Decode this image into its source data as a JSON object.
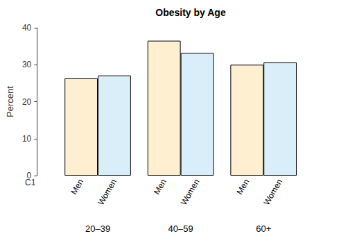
{
  "chart_data": {
    "type": "bar",
    "title": "Obesity by Age",
    "y_label": "Percent",
    "categories": [
      "20–39",
      "40–59",
      "60+"
    ],
    "series": [
      {
        "name": "Men",
        "color": "#fdefd0",
        "values": [
          26.3,
          36.5,
          30.0
        ]
      },
      {
        "name": "Women",
        "color": "#daeefa",
        "values": [
          27.1,
          33.2,
          30.6
        ]
      }
    ],
    "ylim": [
      0,
      40
    ],
    "yticks": [
      0,
      10,
      20,
      30,
      40
    ],
    "grid": false,
    "annotations": [
      "C1"
    ]
  }
}
